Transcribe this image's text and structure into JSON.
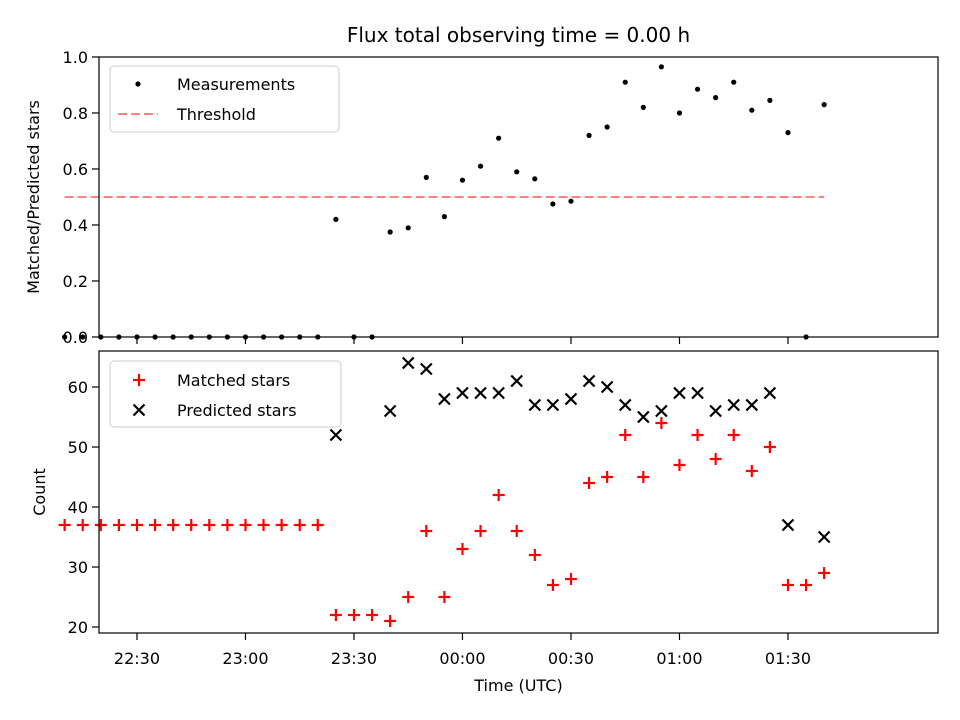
{
  "chart_data": [
    {
      "type": "scatter",
      "title": "Flux total observing time = 0.00 h",
      "xlabel": "",
      "ylabel": "Matched/Predicted stars",
      "ylim": [
        0,
        1.0
      ],
      "yticks": [
        "0.0",
        "0.2",
        "0.4",
        "0.6",
        "0.8",
        "1.0"
      ],
      "legend_position": "top-left",
      "series": [
        {
          "name": "Measurements",
          "style": "dot",
          "color": "#000000",
          "x": [
            "22:10",
            "22:15",
            "22:20",
            "22:25",
            "22:30",
            "22:35",
            "22:40",
            "22:45",
            "22:50",
            "22:55",
            "23:00",
            "23:05",
            "23:10",
            "23:15",
            "23:20",
            "23:25",
            "23:30",
            "23:35",
            "23:40",
            "23:45",
            "23:50",
            "23:55",
            "00:00",
            "00:05",
            "00:10",
            "00:15",
            "00:20",
            "00:25",
            "00:30",
            "00:35",
            "00:40",
            "00:45",
            "00:50",
            "00:55",
            "01:00",
            "01:05",
            "01:10",
            "01:15",
            "01:20",
            "01:25",
            "01:30",
            "01:35",
            "01:40"
          ],
          "y": [
            0,
            0,
            0,
            0,
            0,
            0,
            0,
            0,
            0,
            0,
            0,
            0,
            0,
            0,
            0,
            0.42,
            0,
            0,
            0.375,
            0.39,
            0.57,
            0.43,
            0.56,
            0.61,
            0.71,
            0.59,
            0.565,
            0.475,
            0.485,
            0.72,
            0.75,
            0.91,
            0.82,
            0.965,
            0.8,
            0.885,
            0.855,
            0.91,
            0.81,
            0.845,
            0.73,
            0,
            0.83
          ]
        },
        {
          "name": "Threshold",
          "style": "dashed-line",
          "color": "#ff8080",
          "x": [
            "22:10",
            "01:40"
          ],
          "y": [
            0.5,
            0.5
          ]
        }
      ]
    },
    {
      "type": "scatter",
      "title": "",
      "xlabel": "Time (UTC)",
      "ylabel": "Count",
      "ylim": [
        19,
        66
      ],
      "yticks": [
        "20",
        "30",
        "40",
        "50",
        "60"
      ],
      "xticks": [
        "22:30",
        "23:00",
        "23:30",
        "00:00",
        "00:30",
        "01:00",
        "01:30"
      ],
      "legend_position": "top-left",
      "series": [
        {
          "name": "Matched stars",
          "style": "plus",
          "color": "#ff0000",
          "x": [
            "22:10",
            "22:15",
            "22:20",
            "22:25",
            "22:30",
            "22:35",
            "22:40",
            "22:45",
            "22:50",
            "22:55",
            "23:00",
            "23:05",
            "23:10",
            "23:15",
            "23:20",
            "23:25",
            "23:30",
            "23:35",
            "23:40",
            "23:45",
            "23:50",
            "23:55",
            "00:00",
            "00:05",
            "00:10",
            "00:15",
            "00:20",
            "00:25",
            "00:30",
            "00:35",
            "00:40",
            "00:45",
            "00:50",
            "00:55",
            "01:00",
            "01:05",
            "01:10",
            "01:15",
            "01:20",
            "01:25",
            "01:30",
            "01:35",
            "01:40"
          ],
          "y": [
            37,
            37,
            37,
            37,
            37,
            37,
            37,
            37,
            37,
            37,
            37,
            37,
            37,
            37,
            37,
            22,
            22,
            22,
            21,
            25,
            36,
            25,
            33,
            36,
            42,
            36,
            32,
            27,
            28,
            44,
            45,
            52,
            45,
            54,
            47,
            52,
            48,
            52,
            46,
            50,
            27,
            27,
            29
          ]
        },
        {
          "name": "Predicted stars",
          "style": "x",
          "color": "#000000",
          "x": [
            "23:25",
            "23:40",
            "23:45",
            "23:50",
            "23:55",
            "00:00",
            "00:05",
            "00:10",
            "00:15",
            "00:20",
            "00:25",
            "00:30",
            "00:35",
            "00:40",
            "00:45",
            "00:50",
            "00:55",
            "01:00",
            "01:05",
            "01:10",
            "01:15",
            "01:20",
            "01:25",
            "01:30",
            "01:40"
          ],
          "y": [
            52,
            56,
            64,
            63,
            58,
            59,
            59,
            59,
            61,
            57,
            57,
            58,
            61,
            60,
            57,
            55,
            56,
            59,
            59,
            56,
            57,
            57,
            59,
            37,
            35
          ]
        }
      ]
    }
  ]
}
